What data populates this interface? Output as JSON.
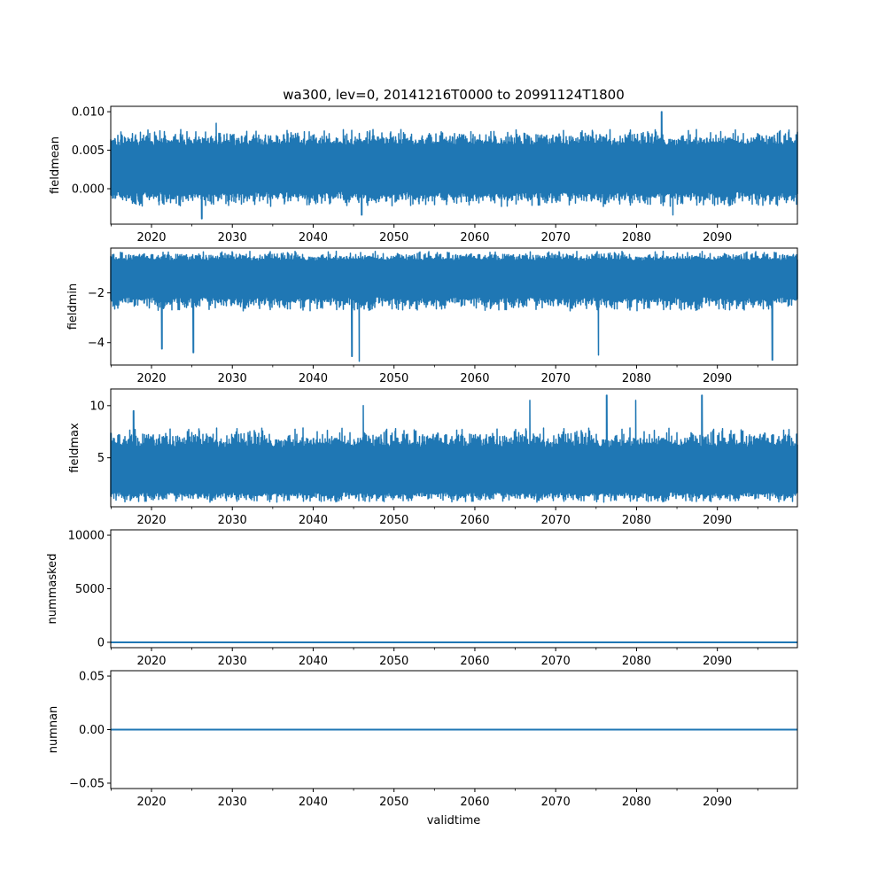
{
  "figure": {
    "title": "wa300, lev=0, 20141216T0000 to 20991124T1800",
    "xlabel": "validtime",
    "series_color": "#1f77b4"
  },
  "chart_data": [
    {
      "type": "line",
      "name": "fieldmean",
      "ylabel": "fieldmean",
      "xlim": [
        2014.96,
        2099.9
      ],
      "ylim": [
        -0.0046,
        0.0107
      ],
      "yticks": [
        0.0,
        0.005,
        0.01
      ],
      "ytick_labels": [
        "0.000",
        "0.005",
        "0.010"
      ],
      "xticks": [
        2020,
        2030,
        2040,
        2050,
        2060,
        2070,
        2080,
        2090
      ],
      "xtick_labels": [
        "2020",
        "2030",
        "2040",
        "2050",
        "2060",
        "2070",
        "2080",
        "2090"
      ],
      "band": {
        "center": 0.0025,
        "low_typical": -0.0012,
        "high_typical": 0.0065
      },
      "extremes": [
        {
          "x": 2026.2,
          "y": -0.0039
        },
        {
          "x": 2083.1,
          "y": 0.01
        },
        {
          "x": 2046.0,
          "y": -0.0034
        },
        {
          "x": 2084.5,
          "y": -0.0034
        },
        {
          "x": 2028.0,
          "y": 0.0085
        }
      ]
    },
    {
      "type": "line",
      "name": "fieldmin",
      "ylabel": "fieldmin",
      "xlim": [
        2014.96,
        2099.9
      ],
      "ylim": [
        -4.9,
        -0.2
      ],
      "yticks": [
        -4,
        -2
      ],
      "ytick_labels": [
        "−4",
        "−2"
      ],
      "xticks": [
        2020,
        2030,
        2040,
        2050,
        2060,
        2070,
        2080,
        2090
      ],
      "xtick_labels": [
        "2020",
        "2030",
        "2040",
        "2050",
        "2060",
        "2070",
        "2080",
        "2090"
      ],
      "band": {
        "center": -1.3,
        "low_typical": -2.4,
        "high_typical": -0.55
      },
      "extremes": [
        {
          "x": 2045.7,
          "y": -4.75
        },
        {
          "x": 2096.8,
          "y": -4.7
        },
        {
          "x": 2044.8,
          "y": -4.55
        },
        {
          "x": 2075.3,
          "y": -4.5
        },
        {
          "x": 2025.2,
          "y": -4.4
        },
        {
          "x": 2021.3,
          "y": -4.25
        }
      ]
    },
    {
      "type": "line",
      "name": "fieldmax",
      "ylabel": "fieldmax",
      "xlim": [
        2014.96,
        2099.9
      ],
      "ylim": [
        0.3,
        11.6
      ],
      "yticks": [
        5,
        10
      ],
      "ytick_labels": [
        "5",
        "10"
      ],
      "xticks": [
        2020,
        2030,
        2040,
        2050,
        2060,
        2070,
        2080,
        2090
      ],
      "xtick_labels": [
        "2020",
        "2030",
        "2040",
        "2050",
        "2060",
        "2070",
        "2080",
        "2090"
      ],
      "band": {
        "center": 3.2,
        "low_typical": 1.3,
        "high_typical": 6.8
      },
      "extremes": [
        {
          "x": 2076.3,
          "y": 11.0
        },
        {
          "x": 2088.1,
          "y": 11.0
        },
        {
          "x": 2079.9,
          "y": 10.5
        },
        {
          "x": 2046.2,
          "y": 10.0
        },
        {
          "x": 2066.8,
          "y": 10.5
        },
        {
          "x": 2017.8,
          "y": 9.5
        }
      ]
    },
    {
      "type": "line",
      "name": "nummasked",
      "ylabel": "nummasked",
      "xlim": [
        2014.96,
        2099.9
      ],
      "ylim": [
        -500,
        10500
      ],
      "yticks": [
        0,
        5000,
        10000
      ],
      "ytick_labels": [
        "0",
        "5000",
        "10000"
      ],
      "xticks": [
        2020,
        2030,
        2040,
        2050,
        2060,
        2070,
        2080,
        2090
      ],
      "xtick_labels": [
        "2020",
        "2030",
        "2040",
        "2050",
        "2060",
        "2070",
        "2080",
        "2090"
      ],
      "constant": 0
    },
    {
      "type": "line",
      "name": "numnan",
      "ylabel": "numnan",
      "xlim": [
        2014.96,
        2099.9
      ],
      "ylim": [
        -0.055,
        0.055
      ],
      "yticks": [
        -0.05,
        0.0,
        0.05
      ],
      "ytick_labels": [
        "−0.05",
        "0.00",
        "0.05"
      ],
      "xticks": [
        2020,
        2030,
        2040,
        2050,
        2060,
        2070,
        2080,
        2090
      ],
      "xtick_labels": [
        "2020",
        "2030",
        "2040",
        "2050",
        "2060",
        "2070",
        "2080",
        "2090"
      ],
      "constant": 0
    }
  ]
}
